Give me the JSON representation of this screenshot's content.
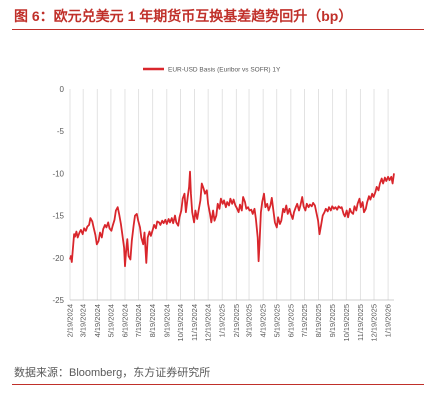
{
  "figure": {
    "title": "图 6：欧元兑美元 1 年期货币互换基差趋势回升（bp）",
    "source": "数据来源：Bloomberg，东方证券研究所"
  },
  "chart_data": {
    "type": "line",
    "title": "",
    "xlabel": "",
    "ylabel": "",
    "ylim": [
      -25,
      0
    ],
    "yticks": [
      0,
      -5,
      -10,
      -15,
      -20,
      -25
    ],
    "grid": "vertical",
    "legend": "top-center",
    "x_range": [
      "2024-02-19",
      "2026-02-01"
    ],
    "x_ticks": [
      "2/19/2024",
      "3/19/2024",
      "4/19/2024",
      "5/19/2024",
      "6/19/2024",
      "7/19/2024",
      "8/19/2024",
      "9/19/2024",
      "10/19/2024",
      "11/19/2024",
      "12/19/2024",
      "1/19/2025",
      "2/19/2025",
      "3/19/2025",
      "4/19/2025",
      "5/19/2025",
      "6/19/2025",
      "7/19/2025",
      "8/19/2025",
      "9/19/2025",
      "10/19/2025",
      "11/19/2025",
      "12/19/2025",
      "1/19/2026"
    ],
    "series": [
      {
        "name": "EUR-USD Basis (Euribor vs SOFR) 1Y",
        "color": "#d9262c",
        "points": [
          [
            "2024-02-19",
            -20.2
          ],
          [
            "2024-02-21",
            -19.8
          ],
          [
            "2024-02-23",
            -20.5
          ],
          [
            "2024-02-26",
            -18.5
          ],
          [
            "2024-02-28",
            -17.2
          ],
          [
            "2024-03-01",
            -17.5
          ],
          [
            "2024-03-04",
            -16.9
          ],
          [
            "2024-03-07",
            -17.6
          ],
          [
            "2024-03-11",
            -17.0
          ],
          [
            "2024-03-14",
            -16.7
          ],
          [
            "2024-03-18",
            -17.2
          ],
          [
            "2024-03-21",
            -16.5
          ],
          [
            "2024-03-25",
            -16.8
          ],
          [
            "2024-03-28",
            -16.3
          ],
          [
            "2024-04-01",
            -16.1
          ],
          [
            "2024-04-04",
            -15.3
          ],
          [
            "2024-04-08",
            -15.7
          ],
          [
            "2024-04-11",
            -16.4
          ],
          [
            "2024-04-15",
            -17.3
          ],
          [
            "2024-04-18",
            -18.4
          ],
          [
            "2024-04-22",
            -18.0
          ],
          [
            "2024-04-25",
            -17.0
          ],
          [
            "2024-04-29",
            -17.6
          ],
          [
            "2024-05-02",
            -16.6
          ],
          [
            "2024-05-06",
            -16.1
          ],
          [
            "2024-05-09",
            -16.4
          ],
          [
            "2024-05-13",
            -15.8
          ],
          [
            "2024-05-16",
            -16.5
          ],
          [
            "2024-05-20",
            -16.8
          ],
          [
            "2024-05-23",
            -16.2
          ],
          [
            "2024-05-27",
            -15.5
          ],
          [
            "2024-05-30",
            -14.4
          ],
          [
            "2024-06-03",
            -14.0
          ],
          [
            "2024-06-06",
            -14.8
          ],
          [
            "2024-06-10",
            -16.0
          ],
          [
            "2024-06-13",
            -17.2
          ],
          [
            "2024-06-17",
            -18.8
          ],
          [
            "2024-06-19",
            -21.0
          ],
          [
            "2024-06-21",
            -19.5
          ],
          [
            "2024-06-24",
            -17.8
          ],
          [
            "2024-06-27",
            -19.8
          ],
          [
            "2024-07-01",
            -20.2
          ],
          [
            "2024-07-04",
            -18.0
          ],
          [
            "2024-07-08",
            -16.2
          ],
          [
            "2024-07-11",
            -15.0
          ],
          [
            "2024-07-15",
            -14.8
          ],
          [
            "2024-07-18",
            -15.6
          ],
          [
            "2024-07-22",
            -16.4
          ],
          [
            "2024-07-25",
            -17.6
          ],
          [
            "2024-07-29",
            -18.4
          ],
          [
            "2024-08-01",
            -17.0
          ],
          [
            "2024-08-05",
            -20.6
          ],
          [
            "2024-08-08",
            -17.6
          ],
          [
            "2024-08-12",
            -16.9
          ],
          [
            "2024-08-15",
            -17.4
          ],
          [
            "2024-08-19",
            -16.7
          ],
          [
            "2024-08-22",
            -16.1
          ],
          [
            "2024-08-26",
            -16.5
          ],
          [
            "2024-08-29",
            -15.7
          ],
          [
            "2024-09-02",
            -15.8
          ],
          [
            "2024-09-05",
            -16.1
          ],
          [
            "2024-09-09",
            -15.6
          ],
          [
            "2024-09-12",
            -15.9
          ],
          [
            "2024-09-16",
            -15.5
          ],
          [
            "2024-09-19",
            -16.0
          ],
          [
            "2024-09-23",
            -15.4
          ],
          [
            "2024-09-26",
            -15.8
          ],
          [
            "2024-09-30",
            -15.3
          ],
          [
            "2024-10-03",
            -15.9
          ],
          [
            "2024-10-07",
            -15.0
          ],
          [
            "2024-10-10",
            -15.8
          ],
          [
            "2024-10-14",
            -16.2
          ],
          [
            "2024-10-17",
            -15.2
          ],
          [
            "2024-10-21",
            -14.4
          ],
          [
            "2024-10-24",
            -13.0
          ],
          [
            "2024-10-28",
            -12.4
          ],
          [
            "2024-10-31",
            -14.6
          ],
          [
            "2024-11-04",
            -12.8
          ],
          [
            "2024-11-07",
            -11.6
          ],
          [
            "2024-11-09",
            -9.8
          ],
          [
            "2024-11-11",
            -12.4
          ],
          [
            "2024-11-14",
            -14.6
          ],
          [
            "2024-11-18",
            -15.8
          ],
          [
            "2024-11-21",
            -14.4
          ],
          [
            "2024-11-25",
            -15.4
          ],
          [
            "2024-11-28",
            -14.4
          ],
          [
            "2024-12-02",
            -13.2
          ],
          [
            "2024-12-05",
            -11.2
          ],
          [
            "2024-12-09",
            -11.8
          ],
          [
            "2024-12-12",
            -12.4
          ],
          [
            "2024-12-16",
            -12.0
          ],
          [
            "2024-12-19",
            -13.6
          ],
          [
            "2024-12-23",
            -14.8
          ],
          [
            "2024-12-26",
            -15.8
          ],
          [
            "2024-12-30",
            -14.4
          ],
          [
            "2025-01-02",
            -15.6
          ],
          [
            "2025-01-06",
            -15.0
          ],
          [
            "2025-01-09",
            -13.6
          ],
          [
            "2025-01-13",
            -14.2
          ],
          [
            "2025-01-16",
            -13.0
          ],
          [
            "2025-01-20",
            -13.6
          ],
          [
            "2025-01-23",
            -13.2
          ],
          [
            "2025-01-27",
            -14.0
          ],
          [
            "2025-01-30",
            -13.4
          ],
          [
            "2025-02-03",
            -13.8
          ],
          [
            "2025-02-06",
            -13.0
          ],
          [
            "2025-02-10",
            -13.6
          ],
          [
            "2025-02-13",
            -13.1
          ],
          [
            "2025-02-17",
            -13.8
          ],
          [
            "2025-02-20",
            -14.1
          ],
          [
            "2025-02-24",
            -14.6
          ],
          [
            "2025-02-27",
            -13.7
          ],
          [
            "2025-03-03",
            -14.4
          ],
          [
            "2025-03-06",
            -12.8
          ],
          [
            "2025-03-10",
            -13.4
          ],
          [
            "2025-03-13",
            -14.2
          ],
          [
            "2025-03-17",
            -14.0
          ],
          [
            "2025-03-20",
            -14.4
          ],
          [
            "2025-03-24",
            -14.3
          ],
          [
            "2025-03-27",
            -14.8
          ],
          [
            "2025-03-31",
            -14.2
          ],
          [
            "2025-04-03",
            -15.4
          ],
          [
            "2025-04-07",
            -17.6
          ],
          [
            "2025-04-09",
            -20.4
          ],
          [
            "2025-04-11",
            -18.4
          ],
          [
            "2025-04-14",
            -14.6
          ],
          [
            "2025-04-17",
            -13.4
          ],
          [
            "2025-04-21",
            -12.4
          ],
          [
            "2025-04-24",
            -14.0
          ],
          [
            "2025-04-28",
            -13.6
          ],
          [
            "2025-05-01",
            -14.4
          ],
          [
            "2025-05-05",
            -13.8
          ],
          [
            "2025-05-08",
            -12.9
          ],
          [
            "2025-05-12",
            -14.6
          ],
          [
            "2025-05-15",
            -15.8
          ],
          [
            "2025-05-19",
            -16.4
          ],
          [
            "2025-05-22",
            -15.2
          ],
          [
            "2025-05-26",
            -16.0
          ],
          [
            "2025-05-29",
            -15.6
          ],
          [
            "2025-06-02",
            -14.2
          ],
          [
            "2025-06-05",
            -14.6
          ],
          [
            "2025-06-09",
            -13.8
          ],
          [
            "2025-06-12",
            -14.8
          ],
          [
            "2025-06-16",
            -14.2
          ],
          [
            "2025-06-19",
            -14.8
          ],
          [
            "2025-06-23",
            -15.4
          ],
          [
            "2025-06-26",
            -14.6
          ],
          [
            "2025-06-30",
            -14.0
          ],
          [
            "2025-07-03",
            -13.6
          ],
          [
            "2025-07-07",
            -14.4
          ],
          [
            "2025-07-10",
            -13.8
          ],
          [
            "2025-07-14",
            -12.8
          ],
          [
            "2025-07-17",
            -13.9
          ],
          [
            "2025-07-21",
            -14.4
          ],
          [
            "2025-07-24",
            -13.6
          ],
          [
            "2025-07-28",
            -14.0
          ],
          [
            "2025-07-31",
            -13.7
          ],
          [
            "2025-08-04",
            -13.9
          ],
          [
            "2025-08-07",
            -13.5
          ],
          [
            "2025-08-11",
            -13.8
          ],
          [
            "2025-08-14",
            -14.6
          ],
          [
            "2025-08-18",
            -15.6
          ],
          [
            "2025-08-21",
            -17.2
          ],
          [
            "2025-08-25",
            -16.0
          ],
          [
            "2025-08-28",
            -15.0
          ],
          [
            "2025-09-01",
            -14.6
          ],
          [
            "2025-09-04",
            -14.2
          ],
          [
            "2025-09-08",
            -14.5
          ],
          [
            "2025-09-11",
            -14.0
          ],
          [
            "2025-09-15",
            -14.4
          ],
          [
            "2025-09-18",
            -13.9
          ],
          [
            "2025-09-22",
            -14.2
          ],
          [
            "2025-09-25",
            -14.0
          ],
          [
            "2025-09-29",
            -14.3
          ],
          [
            "2025-10-02",
            -13.9
          ],
          [
            "2025-10-06",
            -14.1
          ],
          [
            "2025-10-09",
            -14.0
          ],
          [
            "2025-10-13",
            -14.8
          ],
          [
            "2025-10-16",
            -15.1
          ],
          [
            "2025-10-20",
            -14.4
          ],
          [
            "2025-10-23",
            -15.2
          ],
          [
            "2025-10-27",
            -14.2
          ],
          [
            "2025-10-30",
            -14.6
          ],
          [
            "2025-11-03",
            -14.8
          ],
          [
            "2025-11-06",
            -13.9
          ],
          [
            "2025-11-10",
            -14.4
          ],
          [
            "2025-11-13",
            -13.6
          ],
          [
            "2025-11-17",
            -13.0
          ],
          [
            "2025-11-20",
            -14.0
          ],
          [
            "2025-11-24",
            -13.4
          ],
          [
            "2025-11-27",
            -14.6
          ],
          [
            "2025-12-01",
            -14.2
          ],
          [
            "2025-12-04",
            -13.4
          ],
          [
            "2025-12-08",
            -12.7
          ],
          [
            "2025-12-11",
            -13.1
          ],
          [
            "2025-12-15",
            -12.4
          ],
          [
            "2025-12-18",
            -12.8
          ],
          [
            "2025-12-22",
            -12.2
          ],
          [
            "2025-12-25",
            -11.6
          ],
          [
            "2025-12-29",
            -12.0
          ],
          [
            "2026-01-01",
            -11.2
          ],
          [
            "2026-01-05",
            -10.6
          ],
          [
            "2026-01-08",
            -11.2
          ],
          [
            "2026-01-12",
            -10.5
          ],
          [
            "2026-01-15",
            -10.9
          ],
          [
            "2026-01-19",
            -10.4
          ],
          [
            "2026-01-22",
            -10.8
          ],
          [
            "2026-01-26",
            -10.4
          ],
          [
            "2026-01-29",
            -11.2
          ],
          [
            "2026-02-01",
            -10.0
          ]
        ]
      }
    ]
  }
}
